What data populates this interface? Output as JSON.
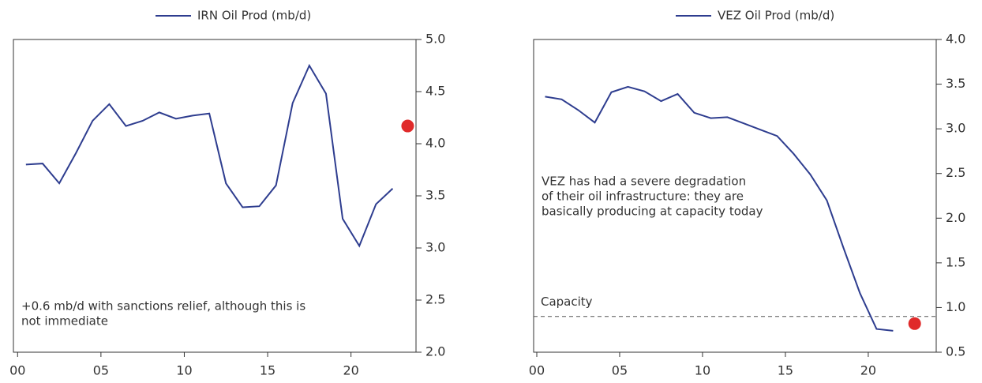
{
  "chart_data": [
    {
      "type": "line",
      "series": [
        {
          "name": "IRN Oil Prod (mb/d)",
          "color": "#2e3d8f",
          "x": [
            0.5,
            1.5,
            2.5,
            3.5,
            4.5,
            5.5,
            6.5,
            7.5,
            8.5,
            9.5,
            10.5,
            11.5,
            12.5,
            13.5,
            14.5,
            15.5,
            16.5,
            17.5,
            18.5,
            19.5,
            20.5,
            21.5,
            22.5
          ],
          "values": [
            3.8,
            3.81,
            3.62,
            3.91,
            4.22,
            4.38,
            4.17,
            4.22,
            4.3,
            4.24,
            4.27,
            4.29,
            3.62,
            3.39,
            3.4,
            3.6,
            4.39,
            4.75,
            4.48,
            3.28,
            3.02,
            3.42,
            3.57
          ]
        }
      ],
      "highlight": {
        "x": 23.4,
        "y": 4.17,
        "color": "#e02a2a"
      },
      "annotation": [
        "+0.6 mb/d with sanctions relief, although this is",
        "not immediate"
      ],
      "xlim": [
        -0.25,
        23.9
      ],
      "xticks": [
        {
          "value": 0,
          "label": "00"
        },
        {
          "value": 5,
          "label": "05"
        },
        10,
        15,
        20
      ],
      "ylim": [
        2.0,
        5.0
      ],
      "yticks": [
        {
          "value": 2.0,
          "label": "2.0"
        },
        2.5,
        {
          "value": 3.0,
          "label": "3.0"
        },
        3.5,
        {
          "value": 4.0,
          "label": "4.0"
        },
        4.5,
        {
          "value": 5.0,
          "label": "5.0"
        }
      ],
      "y_axis_side": "right"
    },
    {
      "type": "line",
      "series": [
        {
          "name": "VEZ Oil Prod (mb/d)",
          "color": "#2e3d8f",
          "x": [
            0.5,
            1.5,
            2.5,
            3.5,
            4.5,
            5.5,
            6.5,
            7.5,
            8.5,
            9.5,
            10.5,
            11.5,
            12.5,
            13.5,
            14.5,
            15.5,
            16.5,
            17.5,
            18.5,
            19.5,
            20.5,
            21.5
          ],
          "values": [
            3.36,
            3.33,
            3.21,
            3.07,
            3.41,
            3.47,
            3.42,
            3.31,
            3.39,
            3.18,
            3.12,
            3.13,
            3.06,
            2.99,
            2.92,
            2.72,
            2.49,
            2.2,
            1.67,
            1.16,
            0.76,
            0.74
          ]
        }
      ],
      "highlight": {
        "x": 22.8,
        "y": 0.82,
        "color": "#e02a2a"
      },
      "reference_line": {
        "label": "Capacity",
        "value": 0.9
      },
      "annotation": [
        "VEZ has had a severe degradation",
        "of their oil infrastructure: they are",
        "basically producing at capacity today"
      ],
      "xlim": [
        -0.19,
        24.1
      ],
      "xticks": [
        {
          "value": 0,
          "label": "00"
        },
        {
          "value": 5,
          "label": "05"
        },
        10,
        15,
        20
      ],
      "ylim": [
        0.5,
        4.0
      ],
      "yticks": [
        0.5,
        {
          "value": 1.0,
          "label": "1.0"
        },
        1.5,
        {
          "value": 2.0,
          "label": "2.0"
        },
        2.5,
        {
          "value": 3.0,
          "label": "3.0"
        },
        3.5,
        {
          "value": 4.0,
          "label": "4.0"
        }
      ],
      "y_axis_side": "right"
    }
  ]
}
